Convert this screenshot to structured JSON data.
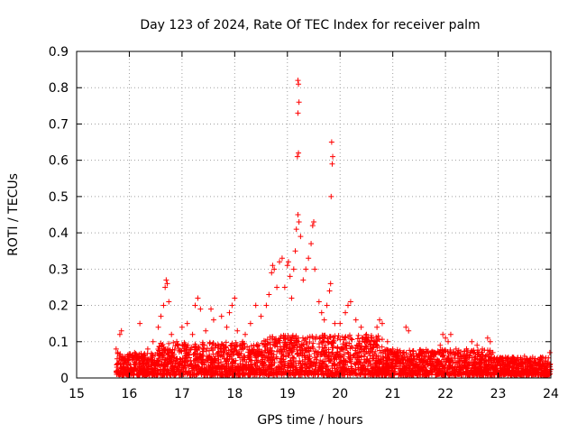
{
  "chart_data": {
    "type": "scatter",
    "title": "Day 123 of 2024, Rate Of TEC Index for receiver palm",
    "xlabel": "GPS time / hours",
    "ylabel": "ROTI / TECUs",
    "xlim": [
      15,
      24
    ],
    "ylim": [
      0,
      0.9
    ],
    "xticks": [
      "15",
      "16",
      "17",
      "18",
      "19",
      "20",
      "21",
      "22",
      "23",
      "24"
    ],
    "yticks": [
      "0",
      "0.1",
      "0.2",
      "0.3",
      "0.4",
      "0.5",
      "0.6",
      "0.7",
      "0.8",
      "0.9"
    ],
    "grid": true,
    "marker": "+",
    "color": "#ff0000",
    "series": [
      {
        "points": [
          [
            15.75,
            0.08
          ],
          [
            15.78,
            0.07
          ],
          [
            15.82,
            0.12
          ],
          [
            15.85,
            0.13
          ],
          [
            15.9,
            0.05
          ],
          [
            16.0,
            0.06
          ],
          [
            16.1,
            0.07
          ],
          [
            16.2,
            0.15
          ],
          [
            16.35,
            0.08
          ],
          [
            16.45,
            0.1
          ],
          [
            16.55,
            0.14
          ],
          [
            16.6,
            0.17
          ],
          [
            16.65,
            0.2
          ],
          [
            16.68,
            0.25
          ],
          [
            16.7,
            0.27
          ],
          [
            16.72,
            0.26
          ],
          [
            16.75,
            0.21
          ],
          [
            16.8,
            0.12
          ],
          [
            16.9,
            0.1
          ],
          [
            17.0,
            0.14
          ],
          [
            17.1,
            0.15
          ],
          [
            17.2,
            0.12
          ],
          [
            17.25,
            0.2
          ],
          [
            17.3,
            0.22
          ],
          [
            17.35,
            0.19
          ],
          [
            17.45,
            0.13
          ],
          [
            17.55,
            0.19
          ],
          [
            17.6,
            0.16
          ],
          [
            17.75,
            0.17
          ],
          [
            17.85,
            0.14
          ],
          [
            17.9,
            0.18
          ],
          [
            17.95,
            0.2
          ],
          [
            18.0,
            0.22
          ],
          [
            18.05,
            0.13
          ],
          [
            18.15,
            0.1
          ],
          [
            18.2,
            0.12
          ],
          [
            18.3,
            0.15
          ],
          [
            18.4,
            0.2
          ],
          [
            18.5,
            0.17
          ],
          [
            18.6,
            0.2
          ],
          [
            18.65,
            0.23
          ],
          [
            18.7,
            0.29
          ],
          [
            18.72,
            0.31
          ],
          [
            18.75,
            0.3
          ],
          [
            18.8,
            0.25
          ],
          [
            18.85,
            0.32
          ],
          [
            18.9,
            0.33
          ],
          [
            18.95,
            0.25
          ],
          [
            19.0,
            0.31
          ],
          [
            19.02,
            0.32
          ],
          [
            19.05,
            0.28
          ],
          [
            19.08,
            0.22
          ],
          [
            19.12,
            0.3
          ],
          [
            19.15,
            0.35
          ],
          [
            19.17,
            0.41
          ],
          [
            19.2,
            0.45
          ],
          [
            19.22,
            0.43
          ],
          [
            19.19,
            0.61
          ],
          [
            19.21,
            0.62
          ],
          [
            19.2,
            0.73
          ],
          [
            19.22,
            0.76
          ],
          [
            19.21,
            0.81
          ],
          [
            19.2,
            0.82
          ],
          [
            19.25,
            0.39
          ],
          [
            19.3,
            0.27
          ],
          [
            19.35,
            0.3
          ],
          [
            19.4,
            0.33
          ],
          [
            19.45,
            0.37
          ],
          [
            19.48,
            0.42
          ],
          [
            19.5,
            0.43
          ],
          [
            19.52,
            0.3
          ],
          [
            19.6,
            0.21
          ],
          [
            19.65,
            0.18
          ],
          [
            19.7,
            0.16
          ],
          [
            19.75,
            0.2
          ],
          [
            19.8,
            0.24
          ],
          [
            19.82,
            0.26
          ],
          [
            19.83,
            0.5
          ],
          [
            19.85,
            0.59
          ],
          [
            19.86,
            0.61
          ],
          [
            19.84,
            0.65
          ],
          [
            19.9,
            0.15
          ],
          [
            20.0,
            0.15
          ],
          [
            20.1,
            0.18
          ],
          [
            20.15,
            0.2
          ],
          [
            20.2,
            0.21
          ],
          [
            20.3,
            0.16
          ],
          [
            20.4,
            0.14
          ],
          [
            20.5,
            0.12
          ],
          [
            20.6,
            0.11
          ],
          [
            20.7,
            0.14
          ],
          [
            20.75,
            0.16
          ],
          [
            20.8,
            0.15
          ],
          [
            20.9,
            0.1
          ],
          [
            21.0,
            0.08
          ],
          [
            21.1,
            0.06
          ],
          [
            21.2,
            0.07
          ],
          [
            21.25,
            0.14
          ],
          [
            21.3,
            0.13
          ],
          [
            21.4,
            0.06
          ],
          [
            21.5,
            0.05
          ],
          [
            21.6,
            0.06
          ],
          [
            21.7,
            0.05
          ],
          [
            21.8,
            0.07
          ],
          [
            21.9,
            0.09
          ],
          [
            21.95,
            0.12
          ],
          [
            22.0,
            0.11
          ],
          [
            22.05,
            0.1
          ],
          [
            22.1,
            0.12
          ],
          [
            22.2,
            0.08
          ],
          [
            22.3,
            0.06
          ],
          [
            22.4,
            0.08
          ],
          [
            22.5,
            0.1
          ],
          [
            22.6,
            0.09
          ],
          [
            22.7,
            0.08
          ],
          [
            22.8,
            0.11
          ],
          [
            22.85,
            0.1
          ],
          [
            22.9,
            0.07
          ],
          [
            23.0,
            0.05
          ],
          [
            23.1,
            0.04
          ],
          [
            23.2,
            0.04
          ],
          [
            23.3,
            0.05
          ],
          [
            23.4,
            0.05
          ],
          [
            23.5,
            0.06
          ],
          [
            23.6,
            0.05
          ],
          [
            23.7,
            0.04
          ],
          [
            23.8,
            0.05
          ],
          [
            23.9,
            0.04
          ],
          [
            23.98,
            0.07
          ]
        ]
      }
    ],
    "dense_band": [
      {
        "from": 15.75,
        "to": 16.5,
        "typical_max": 0.06
      },
      {
        "from": 16.5,
        "to": 18.5,
        "typical_max": 0.09
      },
      {
        "from": 18.5,
        "to": 20.8,
        "typical_max": 0.11
      },
      {
        "from": 20.8,
        "to": 22.9,
        "typical_max": 0.07
      },
      {
        "from": 22.9,
        "to": 24.0,
        "typical_max": 0.05
      }
    ]
  }
}
